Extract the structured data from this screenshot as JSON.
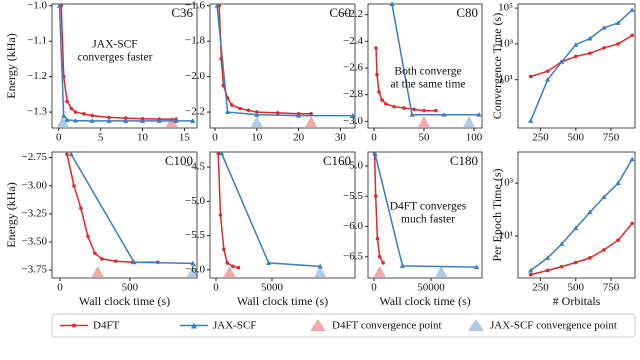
{
  "chart_data": [
    {
      "type": "line",
      "title": "C36",
      "ylabel": "Energy (kHa)",
      "annotation": [
        "JAX-SCF",
        "converges faster"
      ],
      "xlim": [
        -0.8,
        16.5
      ],
      "xticks": [
        0,
        5,
        10,
        15
      ],
      "ylim": [
        -1.345,
        -0.995
      ],
      "yticks": [
        {
          "value": -1.0,
          "label": "−1.0"
        },
        {
          "value": -1.1,
          "label": "−1.1"
        },
        {
          "value": -1.2,
          "label": "−1.2"
        },
        {
          "value": -1.3,
          "label": "−1.3"
        }
      ],
      "series": [
        {
          "name": "D4FT",
          "color": "#e0282a",
          "x": [
            0.3,
            0.6,
            1,
            1.5,
            2,
            3,
            4,
            6,
            8,
            10,
            12,
            14
          ],
          "values": [
            -1.0,
            -1.2,
            -1.27,
            -1.29,
            -1.3,
            -1.305,
            -1.31,
            -1.315,
            -1.317,
            -1.319,
            -1.32,
            -1.32
          ],
          "convergence_x": 13.5
        },
        {
          "name": "JAX-SCF",
          "color": "#3a7dbf",
          "x": [
            0.1,
            0.6,
            1,
            2,
            4,
            6,
            8,
            10,
            12,
            14,
            16
          ],
          "values": [
            -1.0,
            -1.31,
            -1.322,
            -1.324,
            -1.325,
            -1.325,
            -1.325,
            -1.325,
            -1.325,
            -1.325,
            -1.325
          ],
          "convergence_x": 0.5
        }
      ]
    },
    {
      "type": "line",
      "title": "C60",
      "xlim": [
        -1.2,
        33.5
      ],
      "xticks": [
        0,
        10,
        20,
        30
      ],
      "ylim": [
        -2.29,
        -1.59
      ],
      "yticks": [
        {
          "value": -1.6,
          "label": "−1.6"
        },
        {
          "value": -1.8,
          "label": "−1.8"
        },
        {
          "value": -2.0,
          "label": "−2.0"
        },
        {
          "value": -2.2,
          "label": "−2.2"
        }
      ],
      "series": [
        {
          "name": "D4FT",
          "color": "#e0282a",
          "x": [
            1,
            1.5,
            2,
            3,
            4,
            6,
            8,
            10,
            15,
            20,
            23
          ],
          "values": [
            -1.6,
            -1.9,
            -2.05,
            -2.12,
            -2.16,
            -2.18,
            -2.19,
            -2.2,
            -2.205,
            -2.21,
            -2.21
          ],
          "convergence_x": 23
        },
        {
          "name": "JAX-SCF",
          "color": "#3a7dbf",
          "x": [
            0.5,
            3,
            10,
            20,
            33
          ],
          "values": [
            -1.6,
            -2.2,
            -2.215,
            -2.22,
            -2.22
          ],
          "convergence_x": 10
        }
      ]
    },
    {
      "type": "line",
      "title": "C80",
      "annotation": [
        "Both converge",
        "at the same time"
      ],
      "xlim": [
        -6,
        108
      ],
      "xticks": [
        0,
        50,
        100
      ],
      "ylim": [
        -3.05,
        -2.12
      ],
      "yticks": [
        {
          "value": -2.2,
          "label": "−2.2"
        },
        {
          "value": -2.4,
          "label": "−2.4"
        },
        {
          "value": -2.6,
          "label": "−2.6"
        },
        {
          "value": -2.8,
          "label": "−2.8"
        },
        {
          "value": -3.0,
          "label": "−3.0"
        }
      ],
      "series": [
        {
          "name": "D4FT",
          "color": "#e0282a",
          "x": [
            2,
            3,
            5,
            8,
            12,
            20,
            30,
            40,
            50,
            62
          ],
          "values": [
            -2.45,
            -2.65,
            -2.78,
            -2.84,
            -2.87,
            -2.89,
            -2.9,
            -2.91,
            -2.92,
            -2.92
          ],
          "convergence_x": 50
        },
        {
          "name": "JAX-SCF",
          "color": "#3a7dbf",
          "x": [
            18,
            38,
            70,
            105
          ],
          "values": [
            -2.12,
            -2.95,
            -2.95,
            -2.95
          ],
          "convergence_x": 95
        }
      ]
    },
    {
      "type": "line",
      "log_y": true,
      "ylabel": "Convergence Time (s)",
      "xlim": [
        90,
        920
      ],
      "xticks": [
        250,
        500,
        750
      ],
      "ylim": [
        0.02,
        170000
      ],
      "yticks": [
        {
          "value": 10,
          "label": "10¹"
        },
        {
          "value": 1000,
          "label": "10³"
        },
        {
          "value": 100000,
          "label": "10⁵"
        }
      ],
      "series": [
        {
          "name": "D4FT",
          "color": "#e0282a",
          "x": [
            180,
            300,
            400,
            500,
            600,
            700,
            800,
            900
          ],
          "values": [
            15,
            30,
            100,
            200,
            300,
            600,
            1000,
            3000
          ]
        },
        {
          "name": "JAX-SCF",
          "color": "#3a7dbf",
          "x": [
            180,
            300,
            400,
            500,
            600,
            700,
            800,
            900
          ],
          "values": [
            0.05,
            10,
            100,
            900,
            2000,
            8000,
            15000,
            80000
          ]
        }
      ]
    },
    {
      "type": "line",
      "title": "C100",
      "ylabel": "Energy (kHa)",
      "xlabel": "Wall clock time (s)",
      "xlim": [
        -57,
        980
      ],
      "xticks": [
        0,
        500
      ],
      "ylim": [
        -3.82,
        -2.7
      ],
      "yticks": [
        {
          "value": -2.75,
          "label": "−2.75"
        },
        {
          "value": -3.0,
          "label": "−3.00"
        },
        {
          "value": -3.25,
          "label": "−3.25"
        },
        {
          "value": -3.5,
          "label": "−3.50"
        },
        {
          "value": -3.75,
          "label": "−3.75"
        }
      ],
      "series": [
        {
          "name": "D4FT",
          "color": "#e0282a",
          "x": [
            50,
            100,
            150,
            200,
            250,
            300,
            400,
            520,
            700
          ],
          "values": [
            -2.72,
            -3.0,
            -3.2,
            -3.45,
            -3.6,
            -3.65,
            -3.67,
            -3.68,
            -3.68
          ],
          "convergence_x": 270
        },
        {
          "name": "JAX-SCF",
          "color": "#3a7dbf",
          "x": [
            80,
            530,
            950
          ],
          "values": [
            -2.72,
            -3.68,
            -3.69
          ],
          "convergence_x": 950
        }
      ]
    },
    {
      "type": "line",
      "title": "C160",
      "xlabel": "Wall clock time (s)",
      "xlim": [
        -536,
        12410
      ],
      "xticks": [
        0,
        5000
      ],
      "ylim": [
        -6.12,
        -4.28
      ],
      "yticks": [
        {
          "value": -4.5,
          "label": "−4.5"
        },
        {
          "value": -5.0,
          "label": "−5.0"
        },
        {
          "value": -5.5,
          "label": "−5.5"
        },
        {
          "value": -6.0,
          "label": "−6.0"
        }
      ],
      "series": [
        {
          "name": "D4FT",
          "color": "#e0282a",
          "x": [
            200,
            400,
            700,
            1000,
            1500,
            2000
          ],
          "values": [
            -4.3,
            -5.2,
            -5.7,
            -5.9,
            -5.95,
            -5.97
          ],
          "convergence_x": 1200
        },
        {
          "name": "JAX-SCF",
          "color": "#3a7dbf",
          "x": [
            500,
            4700,
            9300
          ],
          "values": [
            -4.3,
            -5.9,
            -5.95
          ],
          "convergence_x": 9300
        }
      ]
    },
    {
      "type": "line",
      "title": "C180",
      "xlabel": "Wall clock time (s)",
      "annotation": [
        "D4FT converges",
        "much faster"
      ],
      "xlim": [
        -5260,
        94700
      ],
      "xticks": [
        0,
        50000
      ],
      "ylim": [
        -6.85,
        -4.77
      ],
      "yticks": [
        {
          "value": -5.0,
          "label": "−5.0"
        },
        {
          "value": -5.5,
          "label": "−5.5"
        },
        {
          "value": -6.0,
          "label": "−6.0"
        },
        {
          "value": -6.5,
          "label": "−6.5"
        }
      ],
      "series": [
        {
          "name": "D4FT",
          "color": "#e0282a",
          "x": [
            500,
            1500,
            3000,
            5000,
            8000
          ],
          "values": [
            -4.8,
            -5.5,
            -6.2,
            -6.5,
            -6.6
          ],
          "convergence_x": 5000
        },
        {
          "name": "JAX-SCF",
          "color": "#3a7dbf",
          "x": [
            1000,
            25000,
            90000
          ],
          "values": [
            -4.8,
            -6.65,
            -6.67
          ],
          "convergence_x": 59000
        }
      ]
    },
    {
      "type": "line",
      "log_y": true,
      "ylabel": "Per Epoch Time (s)",
      "xlabel": "# Orbitals",
      "xlim": [
        90,
        920
      ],
      "xticks": [
        250,
        500,
        750
      ],
      "ylim": [
        0.26,
        15000
      ],
      "yticks": [
        {
          "value": 10,
          "label": "10¹"
        },
        {
          "value": 1000,
          "label": "10³"
        }
      ],
      "series": [
        {
          "name": "D4FT",
          "color": "#e0282a",
          "x": [
            180,
            300,
            400,
            500,
            600,
            700,
            800,
            900
          ],
          "values": [
            0.35,
            0.5,
            0.7,
            1,
            1.5,
            3,
            7,
            30
          ]
        },
        {
          "name": "JAX-SCF",
          "color": "#3a7dbf",
          "x": [
            180,
            300,
            400,
            500,
            600,
            700,
            800,
            900
          ],
          "values": [
            0.5,
            1.5,
            5,
            20,
            80,
            300,
            1000,
            8000
          ]
        }
      ]
    }
  ],
  "convergence_legend": [
    "D4FT convergence point",
    "JAX-SCF convergence point"
  ]
}
